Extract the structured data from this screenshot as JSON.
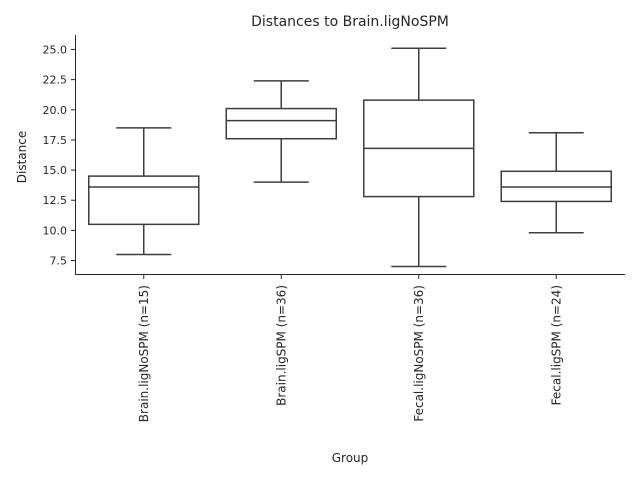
{
  "chart_data": {
    "type": "box",
    "title": "Distances to Brain.ligNoSPM",
    "xlabel": "Group",
    "ylabel": "Distance",
    "ylim": [
      6.3,
      26.2
    ],
    "yticks": [
      7.5,
      10.0,
      12.5,
      15.0,
      17.5,
      20.0,
      22.5,
      25.0
    ],
    "ytick_labels": [
      "7.5",
      "10.0",
      "12.5",
      "15.0",
      "17.5",
      "20.0",
      "22.5",
      "25.0"
    ],
    "grid": false,
    "categories": [
      "Brain.ligNoSPM (n=15)",
      "Brain.ligSPM (n=36)",
      "Fecal.ligNoSPM (n=36)",
      "Fecal.ligSPM (n=24)"
    ],
    "boxes": [
      {
        "whisker_low": 8.0,
        "q1": 10.5,
        "median": 13.6,
        "q3": 14.5,
        "whisker_high": 18.5
      },
      {
        "whisker_low": 14.0,
        "q1": 17.6,
        "median": 19.1,
        "q3": 20.1,
        "whisker_high": 22.4
      },
      {
        "whisker_low": 7.0,
        "q1": 12.8,
        "median": 16.8,
        "q3": 20.8,
        "whisker_high": 25.1
      },
      {
        "whisker_low": 9.8,
        "q1": 12.4,
        "median": 13.6,
        "q3": 14.9,
        "whisker_high": 18.1
      }
    ]
  }
}
